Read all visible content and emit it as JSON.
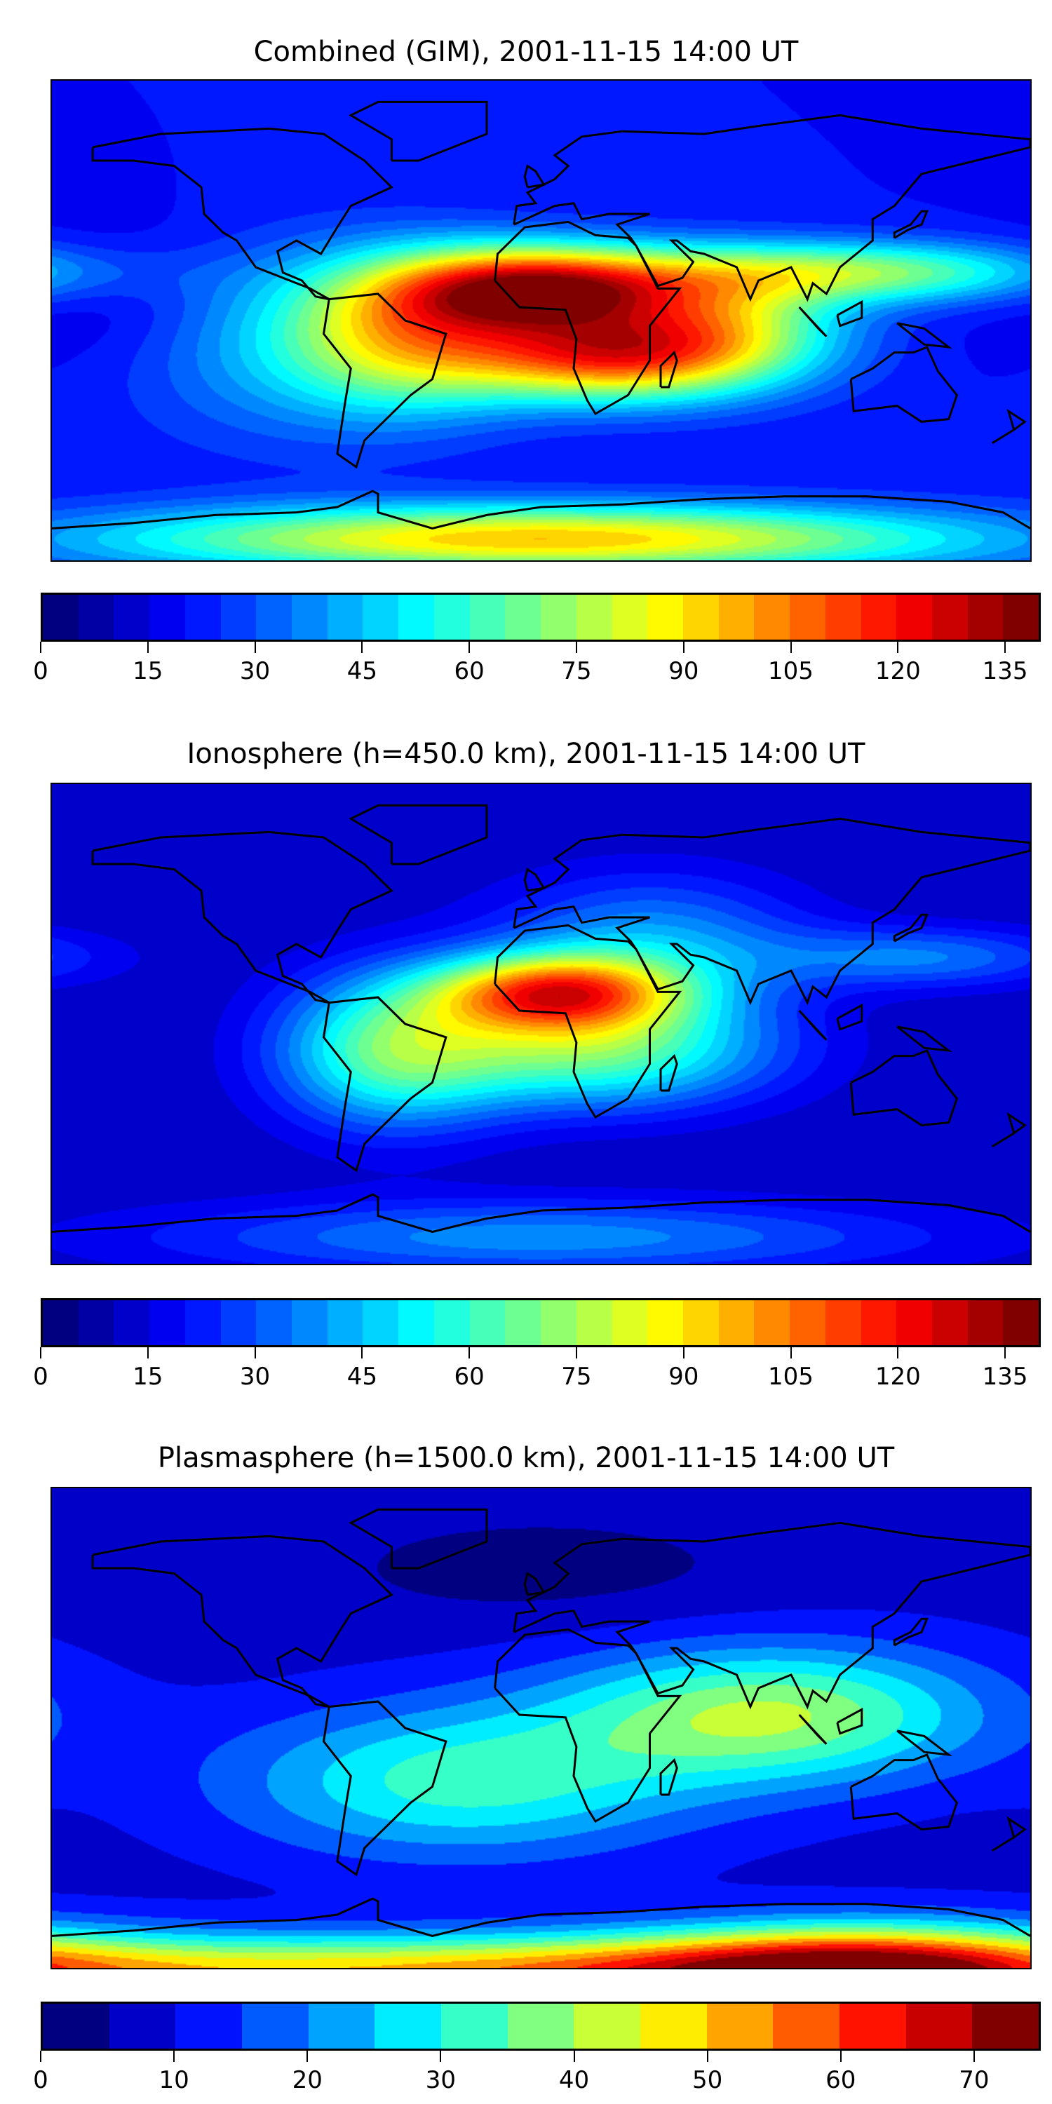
{
  "chart_data": [
    {
      "type": "heatmap",
      "title": "Combined (GIM), 2001-11-15 14:00 UT",
      "projection": "plate-carree",
      "xlim": [
        -180,
        180
      ],
      "ylim": [
        -90,
        90
      ],
      "colorbar": {
        "levels_min": 0,
        "levels_max": 140,
        "level_step": 5,
        "ticks": [
          "0",
          "15",
          "30",
          "45",
          "60",
          "75",
          "90",
          "105",
          "120",
          "135"
        ],
        "tick_values": [
          0,
          15,
          30,
          45,
          60,
          75,
          90,
          105,
          120,
          135
        ],
        "colormap": "jet"
      },
      "field": {
        "base": 20,
        "features": [
          {
            "lon": 0,
            "lat": 12,
            "value": 105,
            "slon": 38,
            "slat": 11
          },
          {
            "lon": 25,
            "lat": -13,
            "value": 88,
            "slon": 40,
            "slat": 12
          },
          {
            "lon": -50,
            "lat": -5,
            "value": 55,
            "slon": 32,
            "slat": 20
          },
          {
            "lon": 115,
            "lat": 18,
            "value": 52,
            "slon": 55,
            "slat": 8
          },
          {
            "lon": 70,
            "lat": 0,
            "value": 40,
            "slon": 30,
            "slat": 15
          },
          {
            "lon": -100,
            "lat": -10,
            "value": 18,
            "slon": 40,
            "slat": 25
          },
          {
            "lon": 0,
            "lat": -82,
            "value": 75,
            "slon": 110,
            "slat": 9
          },
          {
            "lon": -160,
            "lat": 10,
            "value": -8,
            "slon": 30,
            "slat": 20
          }
        ]
      }
    },
    {
      "type": "heatmap",
      "title": "Ionosphere  (h=450.0 km), 2001-11-15 14:00 UT",
      "projection": "plate-carree",
      "xlim": [
        -180,
        180
      ],
      "ylim": [
        -90,
        90
      ],
      "colorbar": {
        "levels_min": 0,
        "levels_max": 140,
        "level_step": 5,
        "ticks": [
          "0",
          "15",
          "30",
          "45",
          "60",
          "75",
          "90",
          "105",
          "120",
          "135"
        ],
        "tick_values": [
          0,
          15,
          30,
          45,
          60,
          75,
          90,
          105,
          120,
          135
        ],
        "colormap": "jet"
      },
      "field": {
        "base": 10,
        "features": [
          {
            "lon": 5,
            "lat": 12,
            "value": 85,
            "slon": 32,
            "slat": 10
          },
          {
            "lon": 20,
            "lat": -10,
            "value": 55,
            "slon": 45,
            "slat": 15
          },
          {
            "lon": -55,
            "lat": -10,
            "value": 50,
            "slon": 30,
            "slat": 20
          },
          {
            "lon": 40,
            "lat": 30,
            "value": 30,
            "slon": 40,
            "slat": 18
          },
          {
            "lon": 140,
            "lat": 25,
            "value": 25,
            "slon": 40,
            "slat": 8
          },
          {
            "lon": 0,
            "lat": -80,
            "value": 28,
            "slon": 100,
            "slat": 10
          }
        ]
      }
    },
    {
      "type": "heatmap",
      "title": "Plasmasphere (h=1500.0 km), 2001-11-15 14:00 UT",
      "projection": "plate-carree",
      "xlim": [
        -180,
        180
      ],
      "ylim": [
        -90,
        90
      ],
      "colorbar": {
        "levels_min": 0,
        "levels_max": 75,
        "level_step": 5,
        "ticks": [
          "0",
          "10",
          "20",
          "30",
          "40",
          "50",
          "60",
          "70"
        ],
        "tick_values": [
          0,
          10,
          20,
          30,
          40,
          50,
          60,
          70
        ],
        "colormap": "jet"
      },
      "field": {
        "base": 8,
        "features": [
          {
            "lon": 85,
            "lat": 5,
            "value": 32,
            "slon": 55,
            "slat": 18
          },
          {
            "lon": -30,
            "lat": -20,
            "value": 24,
            "slon": 60,
            "slat": 20
          },
          {
            "lon": 120,
            "lat": -90,
            "value": 40,
            "slon": 60,
            "slat": 12
          },
          {
            "lon": 0,
            "lat": -92,
            "value": 45,
            "slon": 200,
            "slat": 10
          },
          {
            "lon": 0,
            "lat": 60,
            "value": -5,
            "slon": 60,
            "slat": 15
          }
        ]
      }
    }
  ]
}
